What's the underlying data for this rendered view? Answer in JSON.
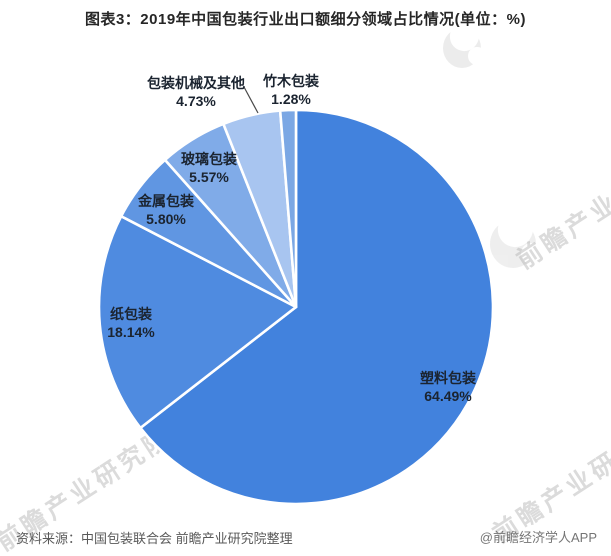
{
  "header": {
    "title": "图表3：2019年中国包装行业出口额细分领域占比情况(单位：%)"
  },
  "chart_data": {
    "type": "pie",
    "title": "2019年中国包装行业出口额细分领域占比情况",
    "unit": "%",
    "start_angle_deg": 0,
    "direction": "clockwise",
    "legend_position": "none",
    "slices": [
      {
        "label": "塑料包装",
        "value": 64.49,
        "pct_label": "64.49%",
        "color": "#4282DD",
        "label_placement": "inside"
      },
      {
        "label": "纸包装",
        "value": 18.14,
        "pct_label": "18.14%",
        "color": "#4F8BE0",
        "label_placement": "inside"
      },
      {
        "label": "金属包装",
        "value": 5.8,
        "pct_label": "5.80%",
        "color": "#6096E2",
        "label_placement": "inside"
      },
      {
        "label": "玻璃包装",
        "value": 5.57,
        "pct_label": "5.57%",
        "color": "#80ABE8",
        "label_placement": "inside"
      },
      {
        "label": "包装机械及其他",
        "value": 4.73,
        "pct_label": "4.73%",
        "color": "#A8C5F0",
        "label_placement": "outside-with-leader"
      },
      {
        "label": "竹木包装",
        "value": 1.28,
        "pct_label": "1.28%",
        "color": "#7BA7E4",
        "label_placement": "outside"
      }
    ]
  },
  "watermark": {
    "text": "前瞻产业研究院"
  },
  "footer": {
    "source": "资料来源：中国包装联合会 前瞻产业研究院整理",
    "credit": "@前瞻经济学人APP"
  }
}
